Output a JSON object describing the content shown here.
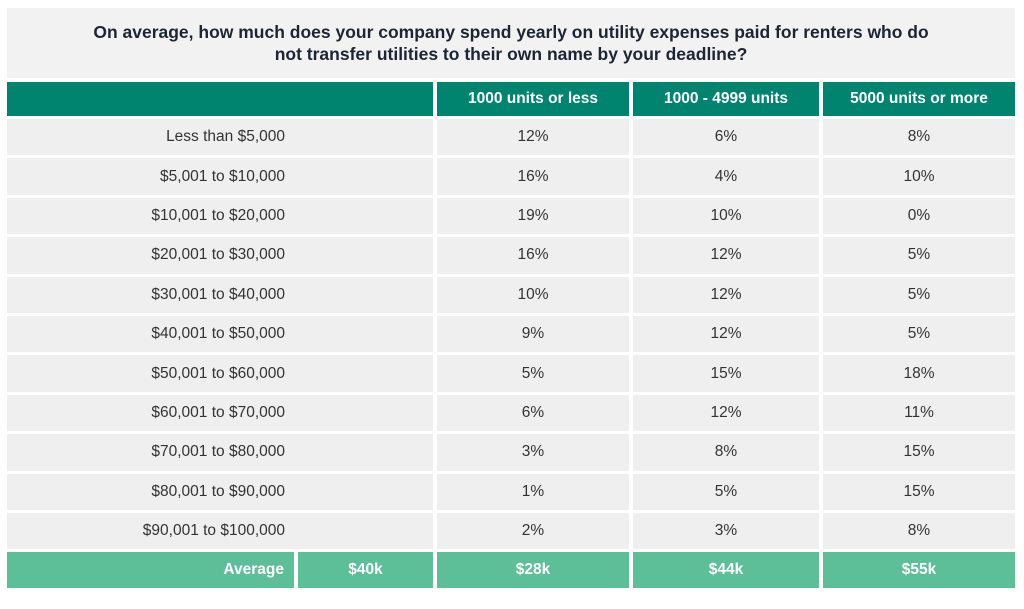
{
  "title": "On average, how much does your company spend yearly on utility expenses paid for renters who do not transfer utilities to their own name by your deadline?",
  "table": {
    "columns": [
      "1000 units or less",
      "1000 - 4999 units",
      "5000 units or more"
    ],
    "rows": [
      [
        "Less than $5,000",
        "12%",
        "6%",
        "8%"
      ],
      [
        "$5,001 to $10,000",
        "16%",
        "4%",
        "10%"
      ],
      [
        "$10,001 to $20,000",
        "19%",
        "10%",
        "0%"
      ],
      [
        "$20,001 to $30,000",
        "16%",
        "12%",
        "5%"
      ],
      [
        "$30,001 to $40,000",
        "10%",
        "12%",
        "5%"
      ],
      [
        "$40,001 to $50,000",
        "9%",
        "12%",
        "5%"
      ],
      [
        "$50,001 to $60,000",
        "5%",
        "15%",
        "18%"
      ],
      [
        "$60,001 to $70,000",
        "6%",
        "12%",
        "11%"
      ],
      [
        "$70,001 to $80,000",
        "3%",
        "8%",
        "15%"
      ],
      [
        "$80,001 to $90,000",
        "1%",
        "5%",
        "15%"
      ],
      [
        "$90,001 to $100,000",
        "2%",
        "3%",
        "8%"
      ]
    ],
    "footer": [
      "Average",
      "$40k",
      "$28k",
      "$44k",
      "$55k"
    ]
  }
}
